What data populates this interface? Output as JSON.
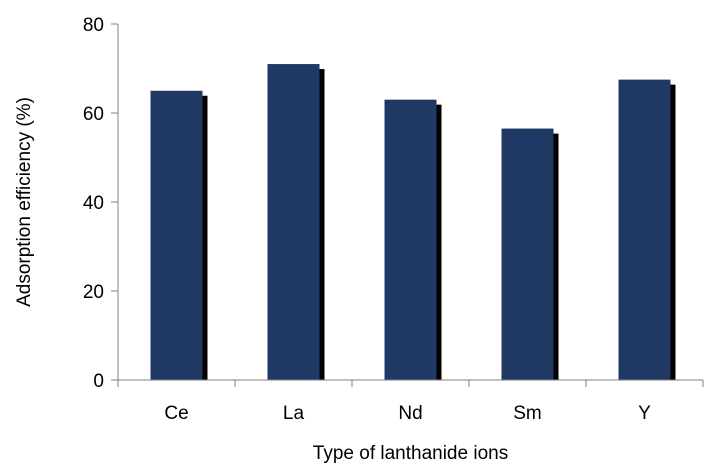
{
  "chart_data": {
    "type": "bar",
    "categories": [
      "Ce",
      "La",
      "Nd",
      "Sm",
      "Y"
    ],
    "values": [
      65,
      71,
      63,
      56.5,
      67.5
    ],
    "title": "",
    "xlabel": "Type of lanthanide ions",
    "ylabel": "Adsorption efficiency (%)",
    "ylim": [
      0,
      80
    ],
    "yticks": [
      "0",
      "20",
      "40",
      "60",
      "80"
    ],
    "grid": false,
    "legend": "none",
    "bar_color": "#1f3864",
    "shadow_color": "#000000"
  }
}
